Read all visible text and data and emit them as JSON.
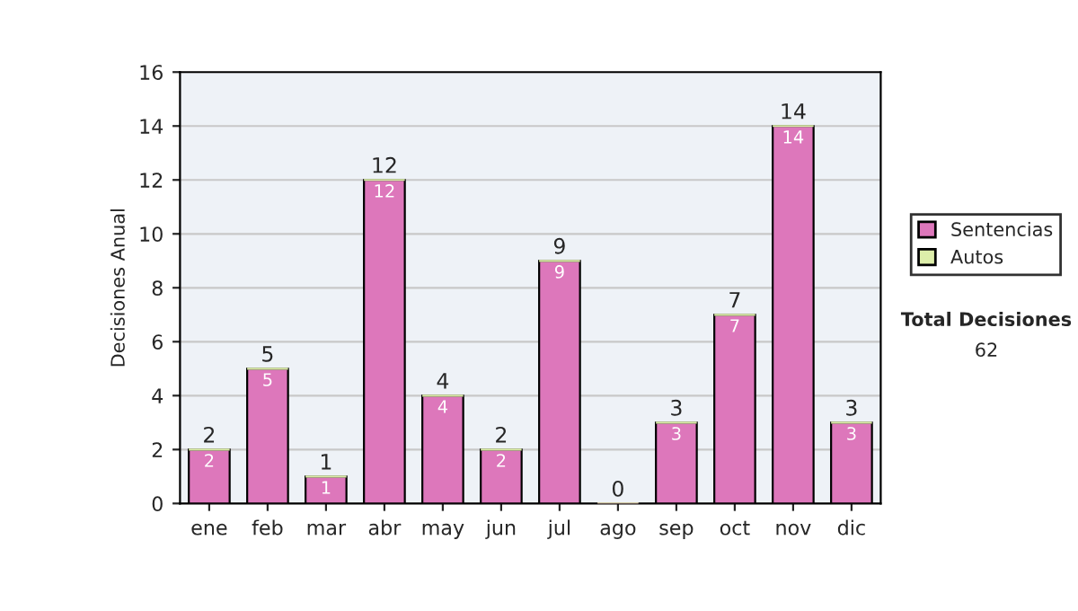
{
  "chart_data": {
    "type": "bar",
    "stacked": true,
    "ylabel": "Decisiones Anual",
    "categories": [
      "ene",
      "feb",
      "mar",
      "abr",
      "may",
      "jun",
      "jul",
      "ago",
      "sep",
      "oct",
      "nov",
      "dic"
    ],
    "series": [
      {
        "name": "Sentencias",
        "color": "#dd77bb",
        "values": [
          2,
          5,
          1,
          12,
          4,
          2,
          9,
          0,
          3,
          7,
          14,
          3
        ],
        "value_labels": [
          "2",
          "5",
          "1",
          "12",
          "4",
          "2",
          "9",
          null,
          "3",
          "7",
          "14",
          "3"
        ]
      },
      {
        "name": "Autos",
        "color": "#ddeeaa",
        "values": [
          0,
          0,
          0,
          0,
          0,
          0,
          0,
          0,
          0,
          0,
          0,
          0
        ]
      }
    ],
    "totals": [
      "2",
      "5",
      "1",
      "12",
      "4",
      "2",
      "9",
      "0",
      "3",
      "7",
      "14",
      "3"
    ],
    "ylim": [
      0,
      16
    ],
    "yticks": [
      0,
      2,
      4,
      6,
      8,
      10,
      12,
      14,
      16
    ],
    "grid": "y",
    "legend": "right",
    "annotations": [
      "Total Decisiones",
      "62"
    ]
  }
}
